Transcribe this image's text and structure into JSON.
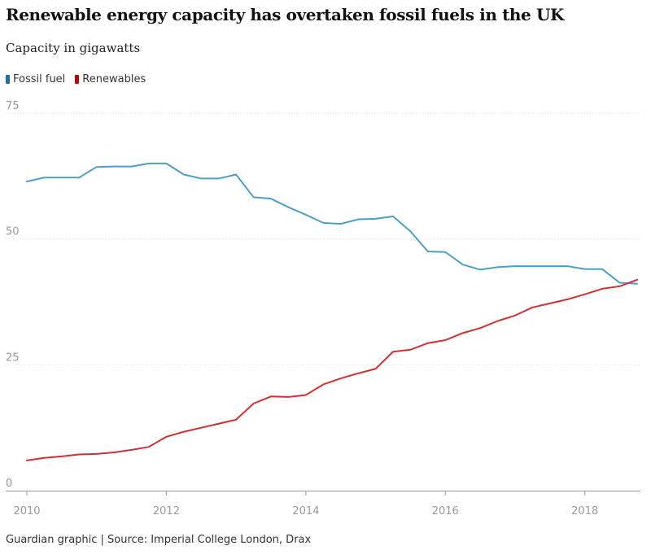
{
  "title": "Renewable energy capacity has overtaken fossil fuels in the UK",
  "subtitle": "Capacity in gigawatts",
  "footer": "Guardian graphic | Source: Imperial College London, Drax",
  "colors": {
    "fossil": "#4a9fc8",
    "renewables": "#d62e2e",
    "legend_fossil": "#1c6fa3",
    "legend_renewables": "#c70000",
    "grid": "#dcdcdc",
    "axis": "#999999"
  },
  "chart_data": {
    "type": "line",
    "title": "Renewable energy capacity has overtaken fossil fuels in the UK",
    "subtitle": "Capacity in gigawatts",
    "xlabel": "",
    "ylabel": "",
    "xlim": [
      2010,
      2018.75
    ],
    "ylim": [
      0,
      75
    ],
    "yticks": [
      0,
      25,
      50,
      75
    ],
    "xticks": [
      2010,
      2012,
      2014,
      2016,
      2018
    ],
    "xtick_labels": [
      "2010",
      "2012",
      "2014",
      "2016",
      "2018"
    ],
    "grid": "horizontal",
    "legend_position": "top-left",
    "series": [
      {
        "name": "Fossil fuel",
        "color": "#4a9fc8",
        "points": [
          [
            2010.0,
            61.4
          ],
          [
            2010.25,
            62.2
          ],
          [
            2010.5,
            62.2
          ],
          [
            2010.75,
            62.2
          ],
          [
            2011.0,
            64.3
          ],
          [
            2011.25,
            64.4
          ],
          [
            2011.5,
            64.4
          ],
          [
            2011.75,
            65.0
          ],
          [
            2012.0,
            65.0
          ],
          [
            2012.25,
            62.8
          ],
          [
            2012.5,
            62.0
          ],
          [
            2012.75,
            62.0
          ],
          [
            2013.0,
            62.8
          ],
          [
            2013.25,
            58.3
          ],
          [
            2013.5,
            58.0
          ],
          [
            2013.75,
            56.3
          ],
          [
            2014.0,
            54.8
          ],
          [
            2014.25,
            53.2
          ],
          [
            2014.5,
            53.0
          ],
          [
            2014.75,
            53.9
          ],
          [
            2015.0,
            54.0
          ],
          [
            2015.25,
            54.5
          ],
          [
            2015.5,
            51.5
          ],
          [
            2015.75,
            47.5
          ],
          [
            2016.0,
            47.4
          ],
          [
            2016.25,
            44.9
          ],
          [
            2016.5,
            43.9
          ],
          [
            2016.75,
            44.4
          ],
          [
            2017.0,
            44.6
          ],
          [
            2017.25,
            44.6
          ],
          [
            2017.5,
            44.6
          ],
          [
            2017.75,
            44.6
          ],
          [
            2018.0,
            44.0
          ],
          [
            2018.25,
            44.0
          ],
          [
            2018.5,
            41.3
          ],
          [
            2018.75,
            41.1
          ]
        ]
      },
      {
        "name": "Renewables",
        "color": "#d62e2e",
        "points": [
          [
            2010.0,
            6.0
          ],
          [
            2010.25,
            6.5
          ],
          [
            2010.5,
            6.8
          ],
          [
            2010.75,
            7.2
          ],
          [
            2011.0,
            7.3
          ],
          [
            2011.25,
            7.6
          ],
          [
            2011.5,
            8.1
          ],
          [
            2011.75,
            8.7
          ],
          [
            2012.0,
            10.7
          ],
          [
            2012.25,
            11.7
          ],
          [
            2012.5,
            12.5
          ],
          [
            2012.75,
            13.3
          ],
          [
            2013.0,
            14.1
          ],
          [
            2013.25,
            17.3
          ],
          [
            2013.5,
            18.7
          ],
          [
            2013.75,
            18.6
          ],
          [
            2014.0,
            19.0
          ],
          [
            2014.25,
            21.1
          ],
          [
            2014.5,
            22.3
          ],
          [
            2014.75,
            23.3
          ],
          [
            2015.0,
            24.2
          ],
          [
            2015.25,
            27.6
          ],
          [
            2015.5,
            28.0
          ],
          [
            2015.75,
            29.3
          ],
          [
            2016.0,
            29.9
          ],
          [
            2016.25,
            31.3
          ],
          [
            2016.5,
            32.3
          ],
          [
            2016.75,
            33.7
          ],
          [
            2017.0,
            34.8
          ],
          [
            2017.25,
            36.4
          ],
          [
            2017.5,
            37.2
          ],
          [
            2017.75,
            38.0
          ],
          [
            2018.0,
            39.0
          ],
          [
            2018.25,
            40.1
          ],
          [
            2018.5,
            40.6
          ],
          [
            2018.75,
            41.9
          ]
        ]
      }
    ]
  }
}
